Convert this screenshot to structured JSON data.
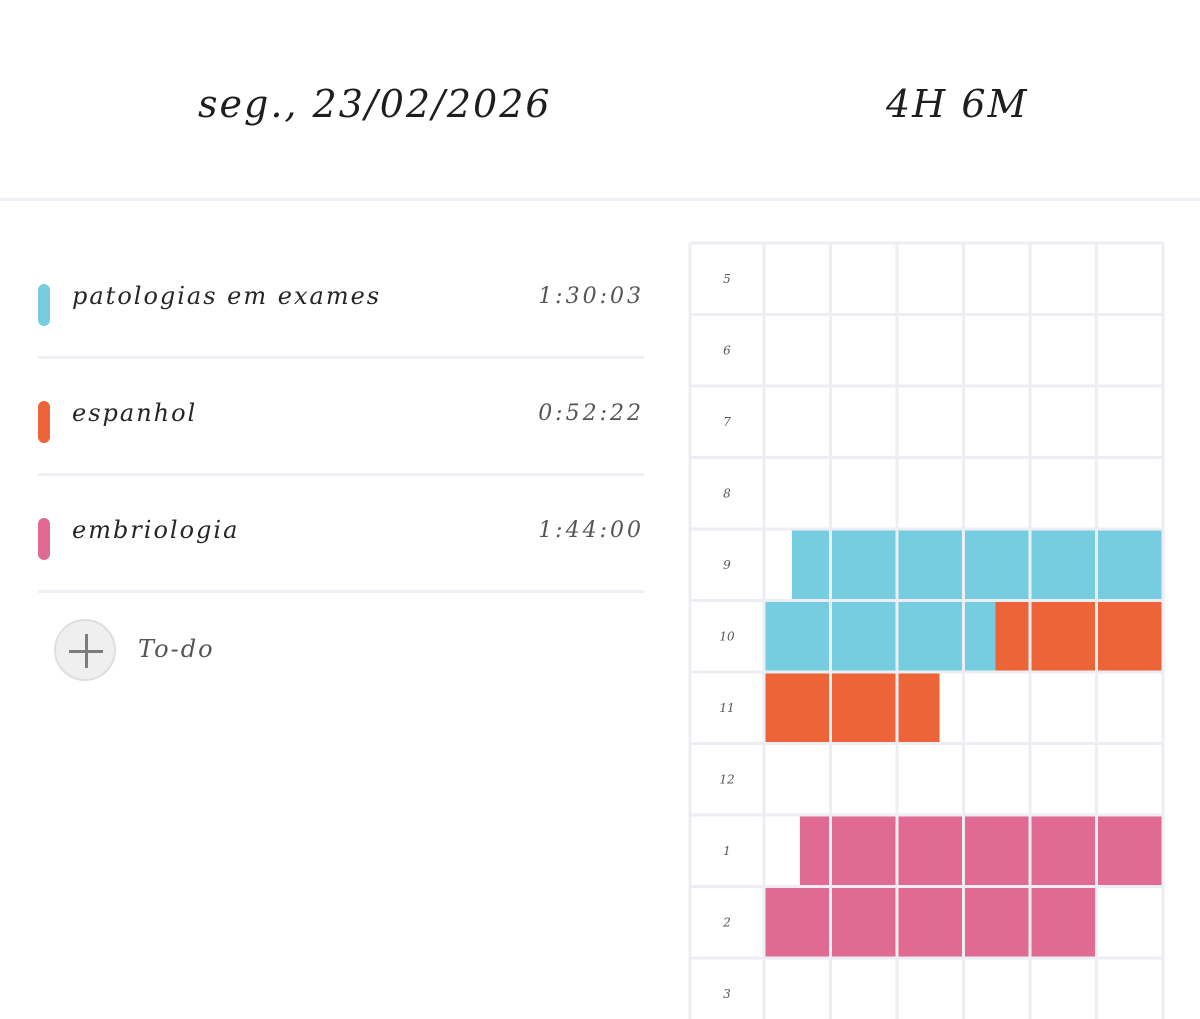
{
  "header": {
    "date": "seg., 23/02/2026",
    "total": "4H 6M"
  },
  "tasks": [
    {
      "name": "patologias em exames",
      "time": "1:30:03",
      "color": "#76cde0"
    },
    {
      "name": "espanhol",
      "time": "0:52:22",
      "color": "#ec6438"
    },
    {
      "name": "embriologia",
      "time": "1:44:00",
      "color": "#e06a92"
    }
  ],
  "todo": {
    "label": "To-do",
    "icon": "plus-icon"
  },
  "timeline": {
    "hours": [
      "5",
      "6",
      "7",
      "8",
      "9",
      "10",
      "11",
      "12",
      "1",
      "2",
      "3"
    ],
    "columns_per_hour": 6,
    "sessions": [
      {
        "task": 0,
        "start_hour_index": 4,
        "start_fraction": 0.07,
        "end_hour_index": 5,
        "end_fraction": 0.58
      },
      {
        "task": 1,
        "start_hour_index": 5,
        "start_fraction": 0.58,
        "end_hour_index": 6,
        "end_fraction": 0.44
      },
      {
        "task": 2,
        "start_hour_index": 8,
        "start_fraction": 0.09,
        "end_hour_index": 9,
        "end_fraction": 0.83
      }
    ]
  }
}
